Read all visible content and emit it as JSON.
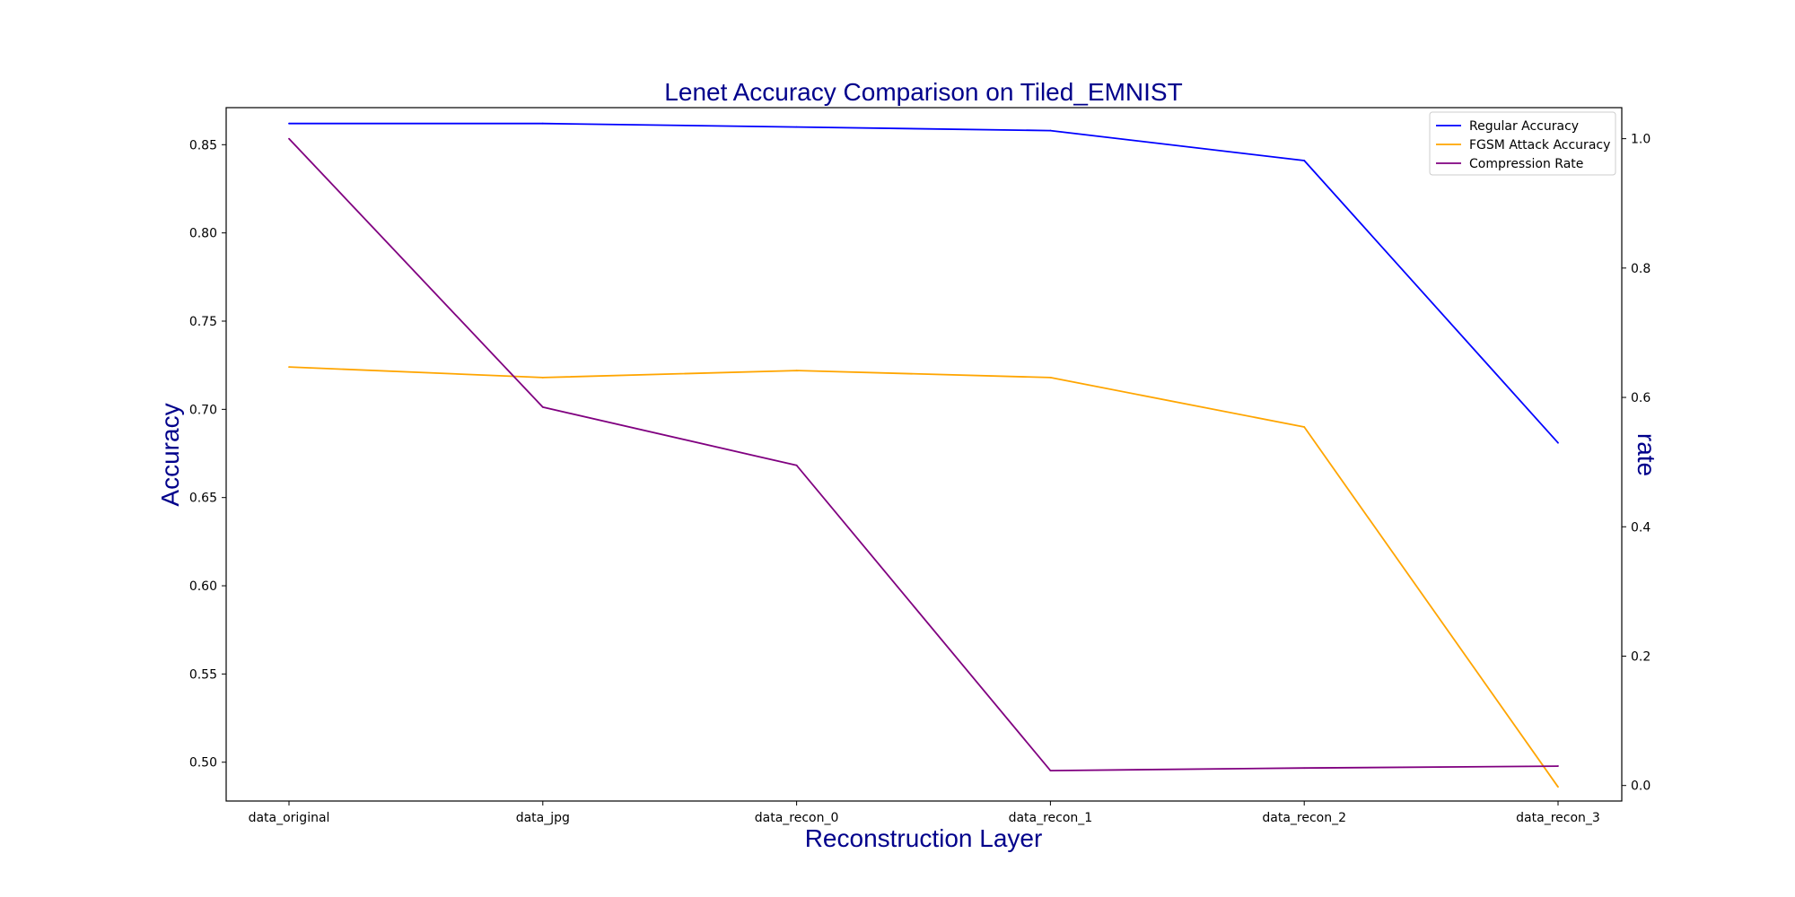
{
  "chart_data": {
    "type": "line",
    "title": "Lenet Accuracy Comparison on Tiled_EMNIST",
    "xlabel": "Reconstruction Layer",
    "ylabel": "Accuracy",
    "ylabel_right": "rate",
    "categories": [
      "data_original",
      "data_jpg",
      "data_recon_0",
      "data_recon_1",
      "data_recon_2",
      "data_recon_3"
    ],
    "ylim": [
      0.478,
      0.871
    ],
    "yticks": [
      0.5,
      0.55,
      0.6,
      0.65,
      0.7,
      0.75,
      0.8,
      0.85
    ],
    "ylim_right": [
      -0.024,
      1.048
    ],
    "yticks_right": [
      0.0,
      0.2,
      0.4,
      0.6,
      0.8,
      1.0
    ],
    "grid": false,
    "legend_position": "top-right",
    "series": [
      {
        "name": "Regular Accuracy",
        "axis": "left",
        "color": "#0000ff",
        "values": [
          0.862,
          0.862,
          0.86,
          0.858,
          0.841,
          0.681
        ]
      },
      {
        "name": "FGSM Attack Accuracy",
        "axis": "left",
        "color": "#ffa500",
        "values": [
          0.724,
          0.718,
          0.722,
          0.718,
          0.69,
          0.486
        ]
      },
      {
        "name": "Compression Rate",
        "axis": "right",
        "color": "#800080",
        "values": [
          1.0,
          0.585,
          0.495,
          0.023,
          0.027,
          0.03
        ]
      }
    ]
  }
}
